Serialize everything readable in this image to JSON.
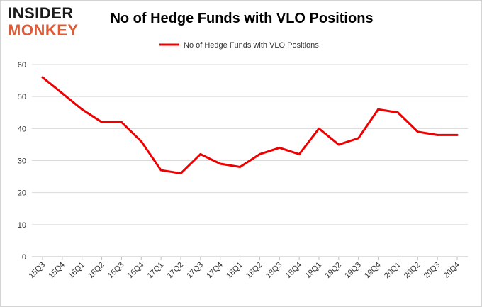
{
  "logo": {
    "line1": "INSIDER",
    "line2": "MONKEY"
  },
  "chart_data": {
    "type": "line",
    "title": "No of Hedge Funds with VLO Positions",
    "xlabel": "",
    "ylabel": "",
    "categories": [
      "15Q3",
      "15Q4",
      "16Q1",
      "16Q2",
      "16Q3",
      "16Q4",
      "17Q1",
      "17Q2",
      "17Q3",
      "17Q4",
      "18Q1",
      "18Q2",
      "18Q3",
      "18Q4",
      "19Q1",
      "19Q2",
      "19Q3",
      "19Q4",
      "20Q1",
      "20Q2",
      "20Q3",
      "20Q4"
    ],
    "series": [
      {
        "name": "No of Hedge Funds with VLO Positions",
        "values": [
          56,
          51,
          46,
          42,
          42,
          36,
          27,
          26,
          32,
          29,
          28,
          32,
          34,
          32,
          40,
          35,
          37,
          46,
          45,
          39,
          38,
          38
        ],
        "color": "#ee0000"
      }
    ],
    "ylim": [
      0,
      60
    ],
    "yticks": [
      0,
      10,
      20,
      30,
      40,
      50,
      60
    ],
    "grid": true,
    "legend_position": "top-center"
  }
}
